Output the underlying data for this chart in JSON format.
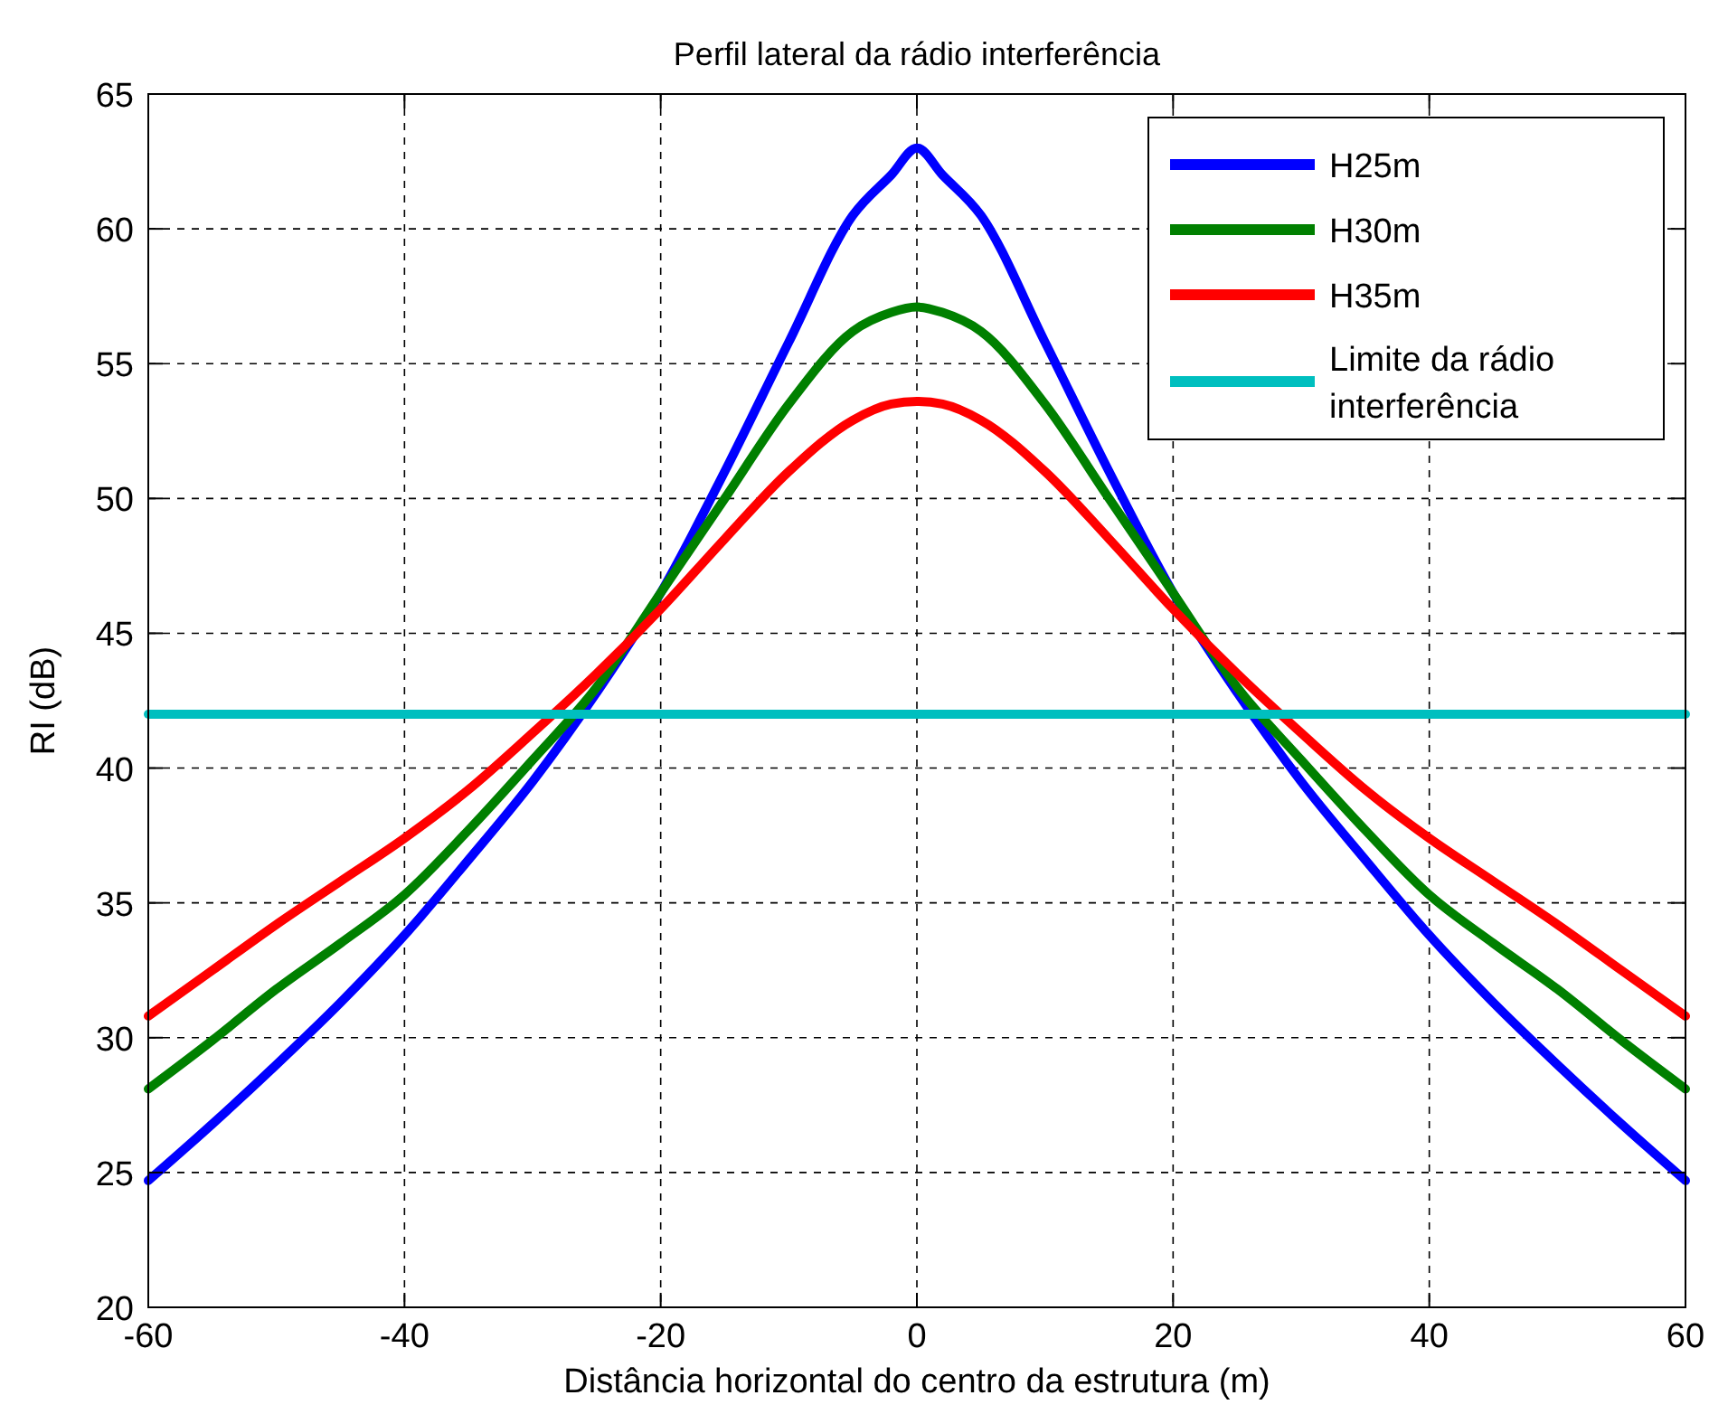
{
  "chart_data": {
    "type": "line",
    "title": "Perfil lateral da rádio interferência",
    "xlabel": "Distância horizontal do centro da estrutura (m)",
    "ylabel": "RI (dB)",
    "x": [
      -60,
      -55,
      -50,
      -45,
      -40,
      -35,
      -30,
      -25,
      -20,
      -15,
      -10,
      -5,
      -2,
      0,
      2,
      5,
      10,
      15,
      20,
      25,
      30,
      35,
      40,
      45,
      50,
      55,
      60
    ],
    "series": [
      {
        "name": "H25m",
        "color": "#0000ff",
        "values": [
          24.7,
          26.8,
          29,
          31.3,
          33.8,
          36.6,
          39.5,
          42.8,
          46.5,
          51,
          55.8,
          60.5,
          62,
          63,
          62,
          60.5,
          55.8,
          51,
          46.5,
          42.8,
          39.5,
          36.6,
          33.8,
          31.3,
          29,
          26.8,
          24.7
        ]
      },
      {
        "name": "H30m",
        "color": "#008000",
        "values": [
          28.1,
          29.9,
          31.8,
          33.5,
          35.3,
          37.7,
          40.3,
          43,
          46.5,
          50,
          53.5,
          56.2,
          56.9,
          57.1,
          56.9,
          56.2,
          53.5,
          50,
          46.5,
          43,
          40.3,
          37.7,
          35.3,
          33.5,
          31.8,
          29.9,
          28.1
        ]
      },
      {
        "name": "H35m",
        "color": "#ff0000",
        "values": [
          30.8,
          32.5,
          34.2,
          35.8,
          37.4,
          39.2,
          41.3,
          43.5,
          45.9,
          48.5,
          51,
          52.9,
          53.5,
          53.6,
          53.5,
          52.9,
          51,
          48.5,
          45.9,
          43.5,
          41.3,
          39.2,
          37.4,
          35.8,
          34.2,
          32.5,
          30.8
        ]
      },
      {
        "name": "Limite da rádio interferência",
        "color": "#00bfbf",
        "x": [
          -60,
          60
        ],
        "values": [
          42,
          42
        ]
      }
    ],
    "xlim": [
      -60,
      60
    ],
    "xticks": [
      -60,
      -40,
      -20,
      0,
      20,
      40,
      60
    ],
    "ylim": [
      20,
      65
    ],
    "yticks": [
      20,
      25,
      30,
      35,
      40,
      45,
      50,
      55,
      60,
      65
    ],
    "grid": true,
    "legend": "top right",
    "line_style": "solid",
    "marker": "none"
  }
}
